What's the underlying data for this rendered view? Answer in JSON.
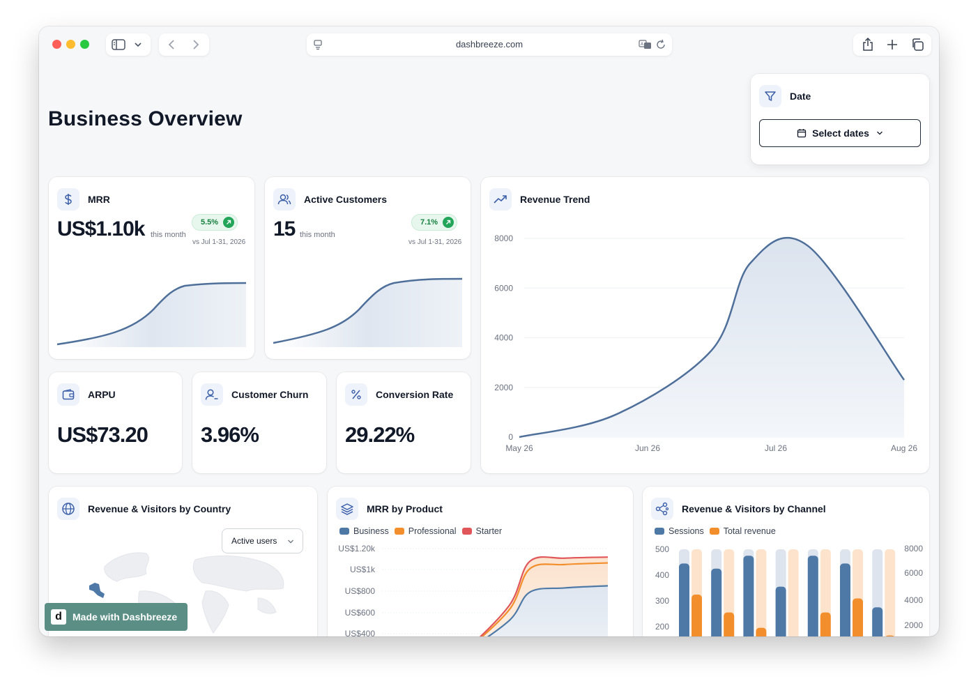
{
  "browser": {
    "url": "dashbreeze.com"
  },
  "page": {
    "title": "Business Overview"
  },
  "date_filter": {
    "label": "Date",
    "button": "Select dates"
  },
  "kpis": {
    "mrr": {
      "label": "MRR",
      "value": "US$1.10k",
      "period": "this month",
      "change": "5.5%",
      "compare": "vs Jul 1-31, 2026"
    },
    "customers": {
      "label": "Active Customers",
      "value": "15",
      "period": "this month",
      "change": "7.1%",
      "compare": "vs Jul 1-31, 2026"
    },
    "arpu": {
      "label": "ARPU",
      "value": "US$73.20"
    },
    "churn": {
      "label": "Customer Churn",
      "value": "3.96%"
    },
    "conversion": {
      "label": "Conversion Rate",
      "value": "29.22%"
    }
  },
  "revenue_trend": {
    "title": "Revenue Trend"
  },
  "country": {
    "title": "Revenue & Visitors by Country",
    "select": "Active users"
  },
  "product": {
    "title": "MRR by Product",
    "legend": [
      "Business",
      "Professional",
      "Starter"
    ]
  },
  "channel": {
    "title": "Revenue & Visitors by Channel",
    "legend": [
      "Sessions",
      "Total revenue"
    ]
  },
  "badge": {
    "text": "Made with Dashbreeze"
  },
  "colors": {
    "blue": "#4e79a7",
    "orange": "#f28e2b",
    "red": "#e15759",
    "green": "#22a559"
  },
  "chart_data": [
    {
      "type": "area",
      "title": "Revenue Trend",
      "categories": [
        "May 26",
        "Jun 26",
        "Jul 26",
        "Aug 26"
      ],
      "yticks": [
        0,
        2000,
        4000,
        6000,
        8000
      ],
      "ylim": [
        0,
        8000
      ],
      "x": [
        0,
        0.25,
        0.5,
        0.6,
        0.75,
        1.0
      ],
      "values": [
        0,
        900,
        3500,
        7000,
        7700,
        2300
      ]
    },
    {
      "type": "area",
      "title": "MRR by Product",
      "yticks": [
        "US$400",
        "US$600",
        "US$800",
        "US$1k",
        "US$1.20k"
      ],
      "series": [
        {
          "name": "Business",
          "values": [
            0,
            0,
            520,
            790,
            830,
            850
          ]
        },
        {
          "name": "Professional",
          "values": [
            0,
            0,
            620,
            1010,
            1050,
            1065
          ]
        },
        {
          "name": "Starter",
          "values": [
            0,
            0,
            660,
            1080,
            1110,
            1120
          ]
        }
      ]
    },
    {
      "type": "bar",
      "title": "Revenue & Visitors by Channel",
      "yticks_left": [
        200,
        300,
        400,
        500
      ],
      "yticks_right": [
        2000,
        4000,
        6000,
        8000
      ],
      "series": [
        {
          "name": "Sessions",
          "values": [
            445,
            425,
            475,
            355,
            475,
            445,
            275
          ]
        },
        {
          "name": "Total revenue",
          "values": [
            4400,
            3000,
            1800,
            900,
            3000,
            4100,
            1200
          ]
        }
      ]
    }
  ]
}
